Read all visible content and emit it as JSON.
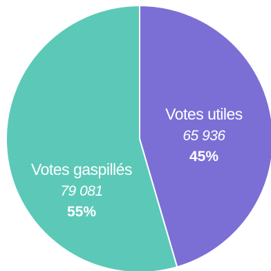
{
  "chart_data": {
    "type": "pie",
    "start": "top",
    "direction": "clockwise",
    "slices": [
      {
        "name": "Votes utiles",
        "value": 65936,
        "value_label": "65 936",
        "percent_label": "45%",
        "color": "#7b6fd6"
      },
      {
        "name": "Votes gaspillés",
        "value": 79081,
        "value_label": "79 081",
        "percent_label": "55%",
        "color": "#5cc9b8"
      }
    ],
    "separator_color": "#ffffff"
  }
}
